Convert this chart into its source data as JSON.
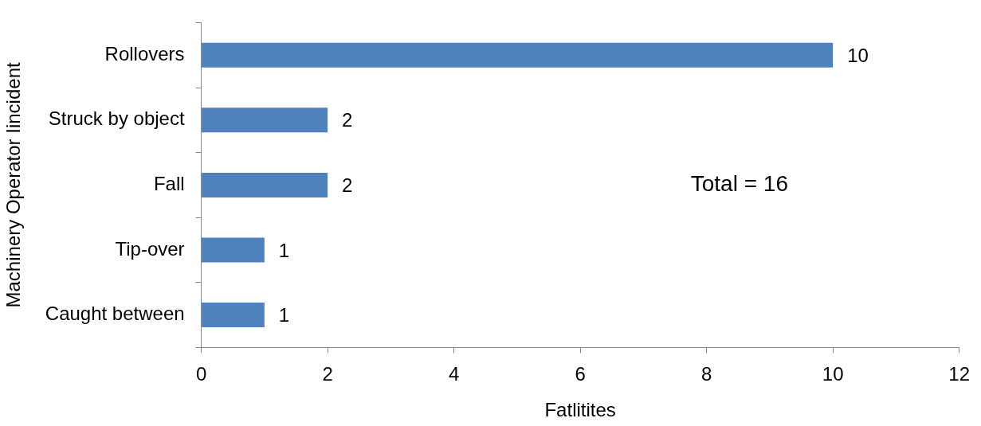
{
  "chart_data": {
    "type": "bar",
    "orientation": "horizontal",
    "categories": [
      "Rollovers",
      "Struck by object",
      "Fall",
      "Tip-over",
      "Caught between"
    ],
    "values": [
      10,
      2,
      2,
      1,
      1
    ],
    "color": "#4f81bd",
    "xlim": [
      0,
      12
    ],
    "xticks": [
      0,
      2,
      4,
      6,
      8,
      10,
      12
    ],
    "xlabel": "Fatlitites",
    "ylabel": "Machinery Operator Iincident",
    "annotations": [
      "Total = 16"
    ],
    "data_labels": true,
    "grid": false,
    "legend": false
  }
}
